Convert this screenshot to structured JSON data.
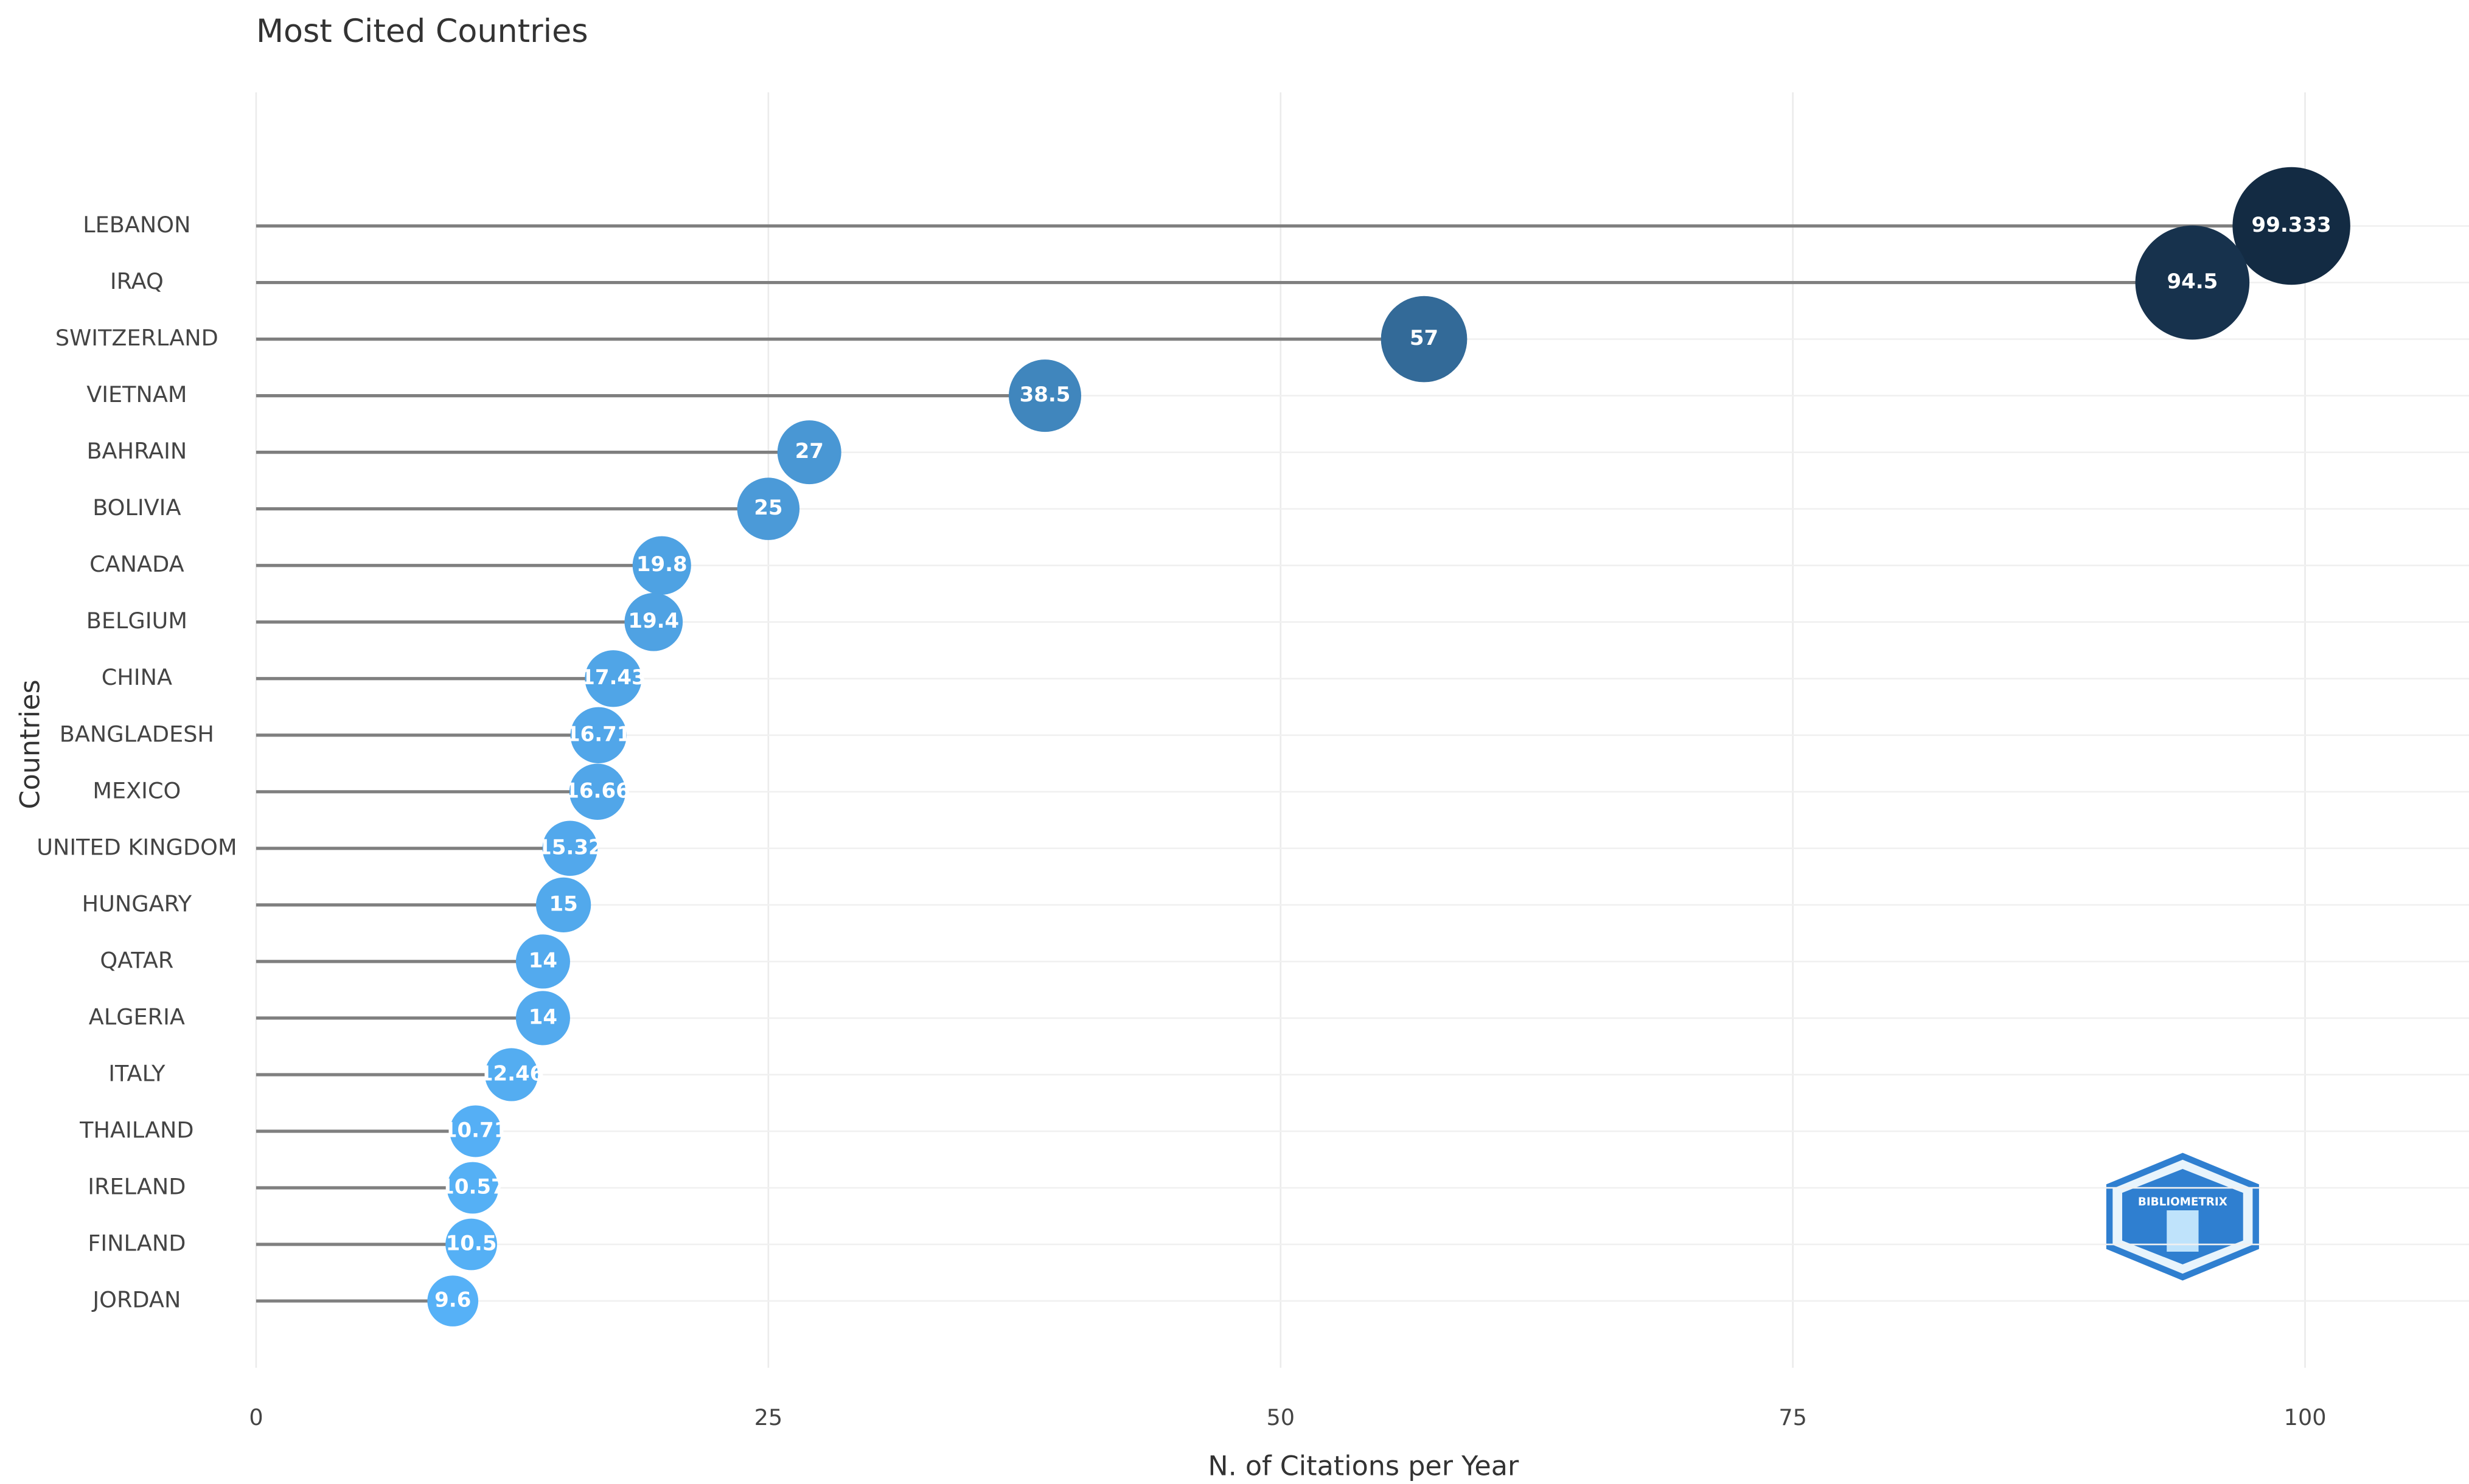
{
  "chart_data": {
    "type": "lollipop",
    "title": "Most Cited Countries",
    "x_label": "N. of Citations per Year",
    "y_label": "Countries",
    "categories": [
      "LEBANON",
      "IRAQ",
      "SWITZERLAND",
      "VIETNAM",
      "BAHRAIN",
      "BOLIVIA",
      "CANADA",
      "BELGIUM",
      "CHINA",
      "BANGLADESH",
      "MEXICO",
      "UNITED KINGDOM",
      "HUNGARY",
      "QATAR",
      "ALGERIA",
      "ITALY",
      "THAILAND",
      "IRELAND",
      "FINLAND",
      "JORDAN"
    ],
    "values": [
      99.333,
      94.5,
      57,
      38.5,
      27,
      25,
      19.8,
      19.4,
      17.43,
      16.71,
      16.66,
      15.32,
      15,
      14,
      14,
      12.46,
      10.71,
      10.57,
      10.5,
      9.6
    ],
    "xlim": [
      0,
      108
    ],
    "xticks": [
      0,
      25,
      50,
      75,
      100
    ],
    "color_scale": [
      "#56b1f7",
      "#132b43"
    ],
    "stem_color": "#7f7f7f",
    "grid": true,
    "logo_text": "BIBLIOMETRIX"
  }
}
